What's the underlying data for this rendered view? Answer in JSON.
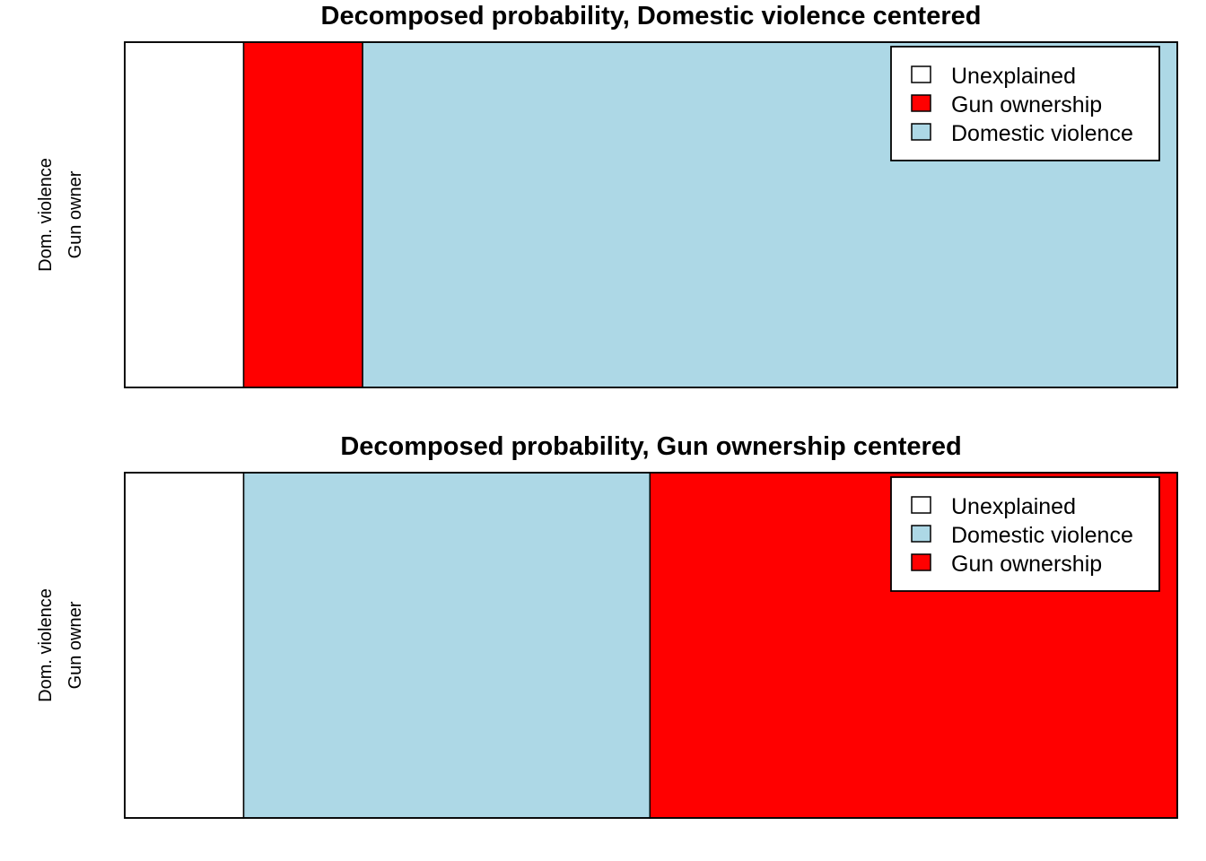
{
  "chart_data": [
    {
      "type": "bar",
      "orientation": "horizontal",
      "stacked": true,
      "title": "Decomposed probability, Domestic violence centered",
      "ylabel_lines": [
        "Dom. violence",
        "Gun owner"
      ],
      "xlim": [
        0,
        1
      ],
      "axes_visible": false,
      "series": [
        {
          "name": "Unexplained",
          "value": 0.113,
          "color": "#FFFFFF"
        },
        {
          "name": "Gun ownership",
          "value": 0.113,
          "color": "#FF0000"
        },
        {
          "name": "Domestic violence",
          "value": 0.774,
          "color": "#ADD8E6"
        }
      ],
      "legend": {
        "position": "top-right",
        "entries": [
          {
            "label": "Unexplained",
            "color": "#FFFFFF"
          },
          {
            "label": "Gun ownership",
            "color": "#FF0000"
          },
          {
            "label": "Domestic violence",
            "color": "#ADD8E6"
          }
        ]
      }
    },
    {
      "type": "bar",
      "orientation": "horizontal",
      "stacked": true,
      "title": "Decomposed probability, Gun ownership centered",
      "ylabel_lines": [
        "Dom. violence",
        "Gun owner"
      ],
      "xlim": [
        0,
        1
      ],
      "axes_visible": false,
      "series": [
        {
          "name": "Unexplained",
          "value": 0.113,
          "color": "#FFFFFF"
        },
        {
          "name": "Domestic violence",
          "value": 0.386,
          "color": "#ADD8E6"
        },
        {
          "name": "Gun ownership",
          "value": 0.501,
          "color": "#FF0000"
        }
      ],
      "legend": {
        "position": "top-right",
        "entries": [
          {
            "label": "Unexplained",
            "color": "#FFFFFF"
          },
          {
            "label": "Domestic violence",
            "color": "#ADD8E6"
          },
          {
            "label": "Gun ownership",
            "color": "#FF0000"
          }
        ]
      }
    }
  ]
}
